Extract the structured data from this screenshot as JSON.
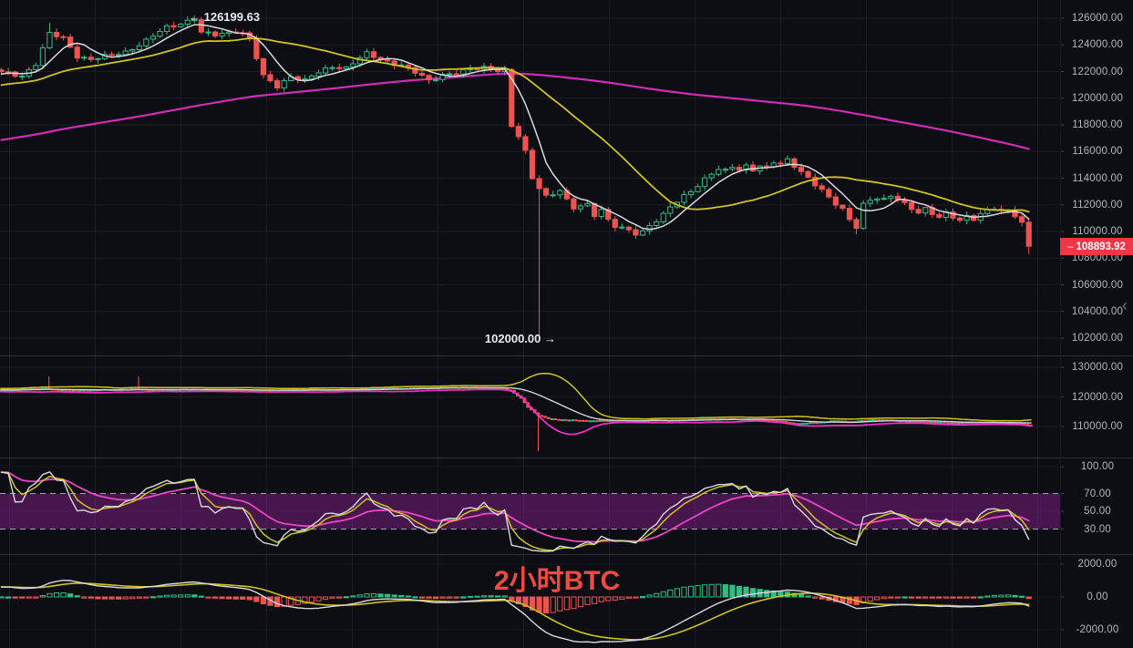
{
  "watermark": {
    "label": "2小时BTC",
    "color": "#f04a45"
  },
  "markers": {
    "high": "← 126199.63",
    "low": "102000.00 →"
  },
  "price_axis": {
    "main_labels": [
      "126000.00",
      "124000.00",
      "122000.00",
      "120000.00",
      "118000.00",
      "116000.00",
      "114000.00",
      "112000.00",
      "110000.00",
      "108000.00",
      "106000.00",
      "104000.00",
      "102000.00"
    ],
    "overview_labels": [
      "130000.00",
      "120000.00",
      "110000.00"
    ],
    "oscillator_labels": [
      "100.00",
      "70.00",
      "50.00",
      "30.00"
    ],
    "macd_labels": [
      "2000.00",
      "0.00",
      "-2000.00"
    ],
    "last_price": "108893.92"
  },
  "colors": {
    "bg": "#0c0e13",
    "grid": "#1a1d26",
    "grid_faint": "#14161d",
    "divider": "#2d313c",
    "tick": "#3c404c",
    "axis_text": "#b2b5be",
    "up": "#2ebd85",
    "down": "#ef5350",
    "ma_fast": "#d7d9de",
    "ma_mid": "#cfc31d",
    "ma_slow": "#d02cb5",
    "bb_basis": "#cfd2d8",
    "bb_upper": "#cfc31d",
    "bb_lower": "#ea2fc5",
    "rsi_fast": "#d7d9de",
    "rsi_mid": "#cfc31d",
    "rsi_slow": "#ee44c8",
    "band": "rgba(155,34,158,0.42)",
    "dashed": "#9fa3ae",
    "macd_line": "#d7d9de",
    "signal_line": "#cfc31d",
    "badge_bg": "#f23645"
  },
  "chart_data": [
    {
      "name": "price",
      "type": "candlestick",
      "candles": 150,
      "y_ticks": [
        126000,
        124000,
        122000,
        120000,
        118000,
        116000,
        114000,
        112000,
        110000,
        108000,
        106000,
        104000,
        102000
      ],
      "high_label": 126199.63,
      "low_label": 102000.0,
      "last": 108893.92,
      "close_anchors": [
        [
          0,
          121900
        ],
        [
          3,
          121700
        ],
        [
          5,
          122600
        ],
        [
          7,
          124800
        ],
        [
          9,
          124500
        ],
        [
          11,
          123200
        ],
        [
          13,
          122900
        ],
        [
          15,
          123100
        ],
        [
          18,
          123500
        ],
        [
          21,
          124300
        ],
        [
          24,
          125300
        ],
        [
          28,
          126000
        ],
        [
          29,
          124900
        ],
        [
          31,
          124700
        ],
        [
          34,
          125100
        ],
        [
          35,
          124900
        ],
        [
          36,
          124400
        ],
        [
          38,
          121600
        ],
        [
          40,
          120900
        ],
        [
          42,
          121700
        ],
        [
          44,
          121300
        ],
        [
          46,
          121900
        ],
        [
          48,
          122400
        ],
        [
          50,
          122300
        ],
        [
          52,
          123000
        ],
        [
          53,
          123300
        ],
        [
          55,
          122900
        ],
        [
          58,
          122500
        ],
        [
          60,
          121900
        ],
        [
          62,
          121300
        ],
        [
          64,
          121800
        ],
        [
          67,
          122000
        ],
        [
          70,
          122300
        ],
        [
          73,
          122100
        ],
        [
          74,
          117900
        ],
        [
          75,
          117100
        ],
        [
          76,
          115900
        ],
        [
          77,
          114000
        ],
        [
          78,
          113300
        ],
        [
          79,
          112700
        ],
        [
          80,
          112900
        ],
        [
          81,
          113100
        ],
        [
          82,
          112300
        ],
        [
          83,
          111700
        ],
        [
          85,
          112000
        ],
        [
          86,
          111300
        ],
        [
          87,
          111700
        ],
        [
          88,
          110900
        ],
        [
          89,
          110400
        ],
        [
          90,
          110200
        ],
        [
          91,
          110000
        ],
        [
          92,
          109800
        ],
        [
          93,
          110000
        ],
        [
          94,
          110500
        ],
        [
          95,
          110900
        ],
        [
          96,
          111300
        ],
        [
          97,
          111800
        ],
        [
          98,
          112200
        ],
        [
          100,
          113000
        ],
        [
          101,
          113500
        ],
        [
          102,
          114000
        ],
        [
          103,
          114400
        ],
        [
          104,
          114700
        ],
        [
          105,
          114500
        ],
        [
          106,
          114800
        ],
        [
          107,
          114600
        ],
        [
          108,
          114900
        ],
        [
          109,
          114700
        ],
        [
          110,
          115000
        ],
        [
          111,
          114800
        ],
        [
          112,
          115200
        ],
        [
          113,
          115000
        ],
        [
          114,
          115300
        ],
        [
          115,
          114900
        ],
        [
          116,
          114500
        ],
        [
          117,
          114100
        ],
        [
          118,
          113600
        ],
        [
          119,
          113100
        ],
        [
          120,
          112500
        ],
        [
          121,
          112000
        ],
        [
          122,
          111600
        ],
        [
          123,
          110900
        ],
        [
          124,
          110400
        ],
        [
          125,
          112100
        ],
        [
          126,
          112400
        ],
        [
          127,
          112500
        ],
        [
          128,
          112300
        ],
        [
          129,
          112600
        ],
        [
          130,
          112400
        ],
        [
          131,
          112100
        ],
        [
          132,
          111800
        ],
        [
          133,
          111500
        ],
        [
          134,
          111700
        ],
        [
          135,
          111300
        ],
        [
          136,
          111000
        ],
        [
          137,
          111300
        ],
        [
          138,
          111100
        ],
        [
          139,
          110900
        ],
        [
          140,
          111200
        ],
        [
          141,
          111000
        ],
        [
          142,
          111300
        ],
        [
          143,
          111500
        ],
        [
          144,
          111700
        ],
        [
          145,
          111500
        ],
        [
          146,
          111600
        ],
        [
          147,
          111300
        ],
        [
          148,
          110700
        ],
        [
          149,
          108894
        ]
      ],
      "special": {
        "7": {
          "high": 125650
        },
        "28": {
          "high": 126199.63
        },
        "78": {
          "low": 102000
        },
        "114": {
          "high": 115700
        },
        "124": {
          "low": 109800
        },
        "149": {
          "close": 108893.92,
          "low": 108300
        }
      },
      "overlays": [
        {
          "name": "ma-fast",
          "kind": "sma",
          "period": 6
        },
        {
          "name": "ma-mid",
          "kind": "sma",
          "period": 24
        },
        {
          "name": "ma-slow",
          "kind": "sma",
          "period": 120
        }
      ]
    },
    {
      "name": "overview",
      "type": "candlestick",
      "candles": 300,
      "y_ticks": [
        130000,
        120000,
        110000
      ],
      "close_anchors": [
        [
          0,
          122300
        ],
        [
          13,
          122900
        ],
        [
          16,
          122300
        ],
        [
          21,
          122100
        ],
        [
          29,
          122400
        ],
        [
          40,
          122700
        ],
        [
          45,
          122300
        ],
        [
          56,
          122600
        ],
        [
          66,
          122300
        ],
        [
          79,
          122200
        ],
        [
          90,
          122500
        ],
        [
          101,
          122400
        ],
        [
          111,
          122800
        ],
        [
          122,
          123000
        ],
        [
          132,
          123300
        ],
        [
          140,
          123100
        ],
        [
          146,
          122800
        ],
        [
          148,
          122200
        ],
        [
          151,
          119500
        ],
        [
          153,
          116500
        ],
        [
          156,
          113800
        ],
        [
          159,
          112600
        ],
        [
          164,
          112200
        ],
        [
          172,
          111900
        ],
        [
          180,
          112100
        ],
        [
          185,
          111800
        ],
        [
          190,
          112300
        ],
        [
          196,
          112000
        ],
        [
          201,
          112400
        ],
        [
          209,
          112600
        ],
        [
          217,
          112400
        ],
        [
          225,
          111900
        ],
        [
          231,
          110900
        ],
        [
          237,
          111400
        ],
        [
          242,
          111900
        ],
        [
          247,
          111600
        ],
        [
          253,
          112300
        ],
        [
          258,
          112100
        ],
        [
          265,
          111700
        ],
        [
          271,
          111400
        ],
        [
          278,
          111200
        ],
        [
          284,
          111500
        ],
        [
          290,
          111300
        ],
        [
          295,
          111100
        ],
        [
          298,
          110600
        ],
        [
          299,
          110300
        ]
      ],
      "special": {
        "14": {
          "high": 126900
        },
        "40": {
          "high": 127000
        },
        "156": {
          "low": 101700
        },
        "299": {
          "close": 110300
        }
      },
      "overlays": [
        {
          "name": "bollinger-bands",
          "kind": "bb",
          "period": 20,
          "mult": 2.1
        }
      ]
    },
    {
      "name": "oscillator",
      "type": "line",
      "levels": [
        100,
        70,
        50,
        30
      ],
      "band": [
        30,
        70
      ],
      "series": [
        {
          "name": "rsi-fast",
          "kind": "rsi",
          "period": 8
        },
        {
          "name": "rsi-mid",
          "kind": "ema-of-fast",
          "period": 3
        },
        {
          "name": "rsi-slow",
          "kind": "ema-of-fast",
          "period": 13
        }
      ]
    },
    {
      "name": "macd",
      "type": "histogram",
      "levels": [
        2000,
        0,
        -2000
      ],
      "fast": 12,
      "slow": 26,
      "signal": 9
    }
  ]
}
